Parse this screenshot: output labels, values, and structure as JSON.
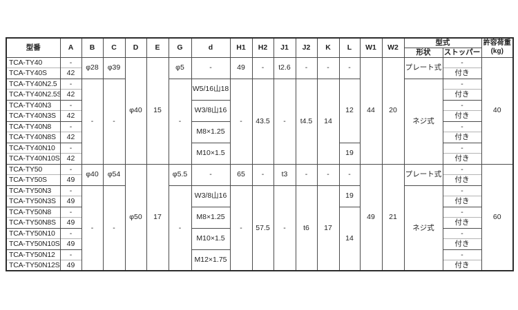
{
  "page": {
    "background": "#ffffff"
  },
  "colors": {
    "text": "#1f1f1f",
    "grid": "#4a4a4a",
    "grid_light": "#b3b3b3",
    "outer_border": "#2b2b2b",
    "background": "#ffffff"
  },
  "table": {
    "column_keys": [
      "model",
      "A",
      "B",
      "C",
      "D",
      "E",
      "G",
      "d",
      "H1",
      "H2",
      "J1",
      "J2",
      "K",
      "L",
      "W1",
      "W2",
      "shape",
      "stopper",
      "load"
    ],
    "header": {
      "cols": [
        "型番",
        "A",
        "B",
        "C",
        "D",
        "E",
        "G",
        "d",
        "H1",
        "H2",
        "J1",
        "J2",
        "K",
        "L",
        "W1",
        "W2"
      ],
      "type_group": "型式",
      "shape": "形状",
      "stopper": "ストッパー",
      "load_label": "許容荷重",
      "load_unit": "(kg)"
    },
    "rows": [
      [
        {
          "c": 0,
          "t": "TCA-TY40"
        },
        {
          "c": 1,
          "t": "-"
        },
        {
          "c": 2,
          "t": "φ28",
          "rs": 2
        },
        {
          "c": 3,
          "t": "φ39",
          "rs": 2
        },
        {
          "c": 4,
          "t": "φ40",
          "rs": 10
        },
        {
          "c": 5,
          "t": "15",
          "rs": 10
        },
        {
          "c": 6,
          "t": "φ5",
          "rs": 2
        },
        {
          "c": 7,
          "t": "-",
          "rs": 2
        },
        {
          "c": 8,
          "t": "49",
          "rs": 2
        },
        {
          "c": 9,
          "t": "-",
          "rs": 2
        },
        {
          "c": 10,
          "t": "t2.6",
          "rs": 2
        },
        {
          "c": 11,
          "t": "-",
          "rs": 2
        },
        {
          "c": 12,
          "t": "-",
          "rs": 2
        },
        {
          "c": 13,
          "t": "-",
          "rs": 2
        },
        {
          "c": 14,
          "t": "44",
          "rs": 10
        },
        {
          "c": 15,
          "t": "20",
          "rs": 10
        },
        {
          "c": 16,
          "t": "プレート式",
          "rs": 2
        },
        {
          "c": 17,
          "t": "-"
        },
        {
          "c": 18,
          "t": "40",
          "rs": 10
        }
      ],
      [
        {
          "c": 0,
          "t": "TCA-TY40S"
        },
        {
          "c": 1,
          "t": "42"
        },
        {
          "c": 17,
          "t": "付き"
        }
      ],
      [
        {
          "c": 0,
          "t": "TCA-TY40N2.5"
        },
        {
          "c": 1,
          "t": "-"
        },
        {
          "c": 2,
          "t": "-",
          "rs": 8
        },
        {
          "c": 3,
          "t": "-",
          "rs": 8
        },
        {
          "c": 6,
          "t": "-",
          "rs": 8
        },
        {
          "c": 7,
          "t": "W5/16山18",
          "rs": 2
        },
        {
          "c": 8,
          "t": "-",
          "rs": 8
        },
        {
          "c": 9,
          "t": "43.5",
          "rs": 8
        },
        {
          "c": 10,
          "t": "-",
          "rs": 8
        },
        {
          "c": 11,
          "t": "t4.5",
          "rs": 8
        },
        {
          "c": 12,
          "t": "14",
          "rs": 8
        },
        {
          "c": 13,
          "t": "12",
          "rs": 6
        },
        {
          "c": 16,
          "t": "ネジ式",
          "rs": 8
        },
        {
          "c": 17,
          "t": "-"
        }
      ],
      [
        {
          "c": 0,
          "t": "TCA-TY40N2.5S"
        },
        {
          "c": 1,
          "t": "42"
        },
        {
          "c": 17,
          "t": "付き"
        }
      ],
      [
        {
          "c": 0,
          "t": "TCA-TY40N3"
        },
        {
          "c": 1,
          "t": "-"
        },
        {
          "c": 7,
          "t": "W3/8山16",
          "rs": 2
        },
        {
          "c": 17,
          "t": "-"
        }
      ],
      [
        {
          "c": 0,
          "t": "TCA-TY40N3S"
        },
        {
          "c": 1,
          "t": "42"
        },
        {
          "c": 17,
          "t": "付き"
        }
      ],
      [
        {
          "c": 0,
          "t": "TCA-TY40N8"
        },
        {
          "c": 1,
          "t": "-"
        },
        {
          "c": 7,
          "t": "M8×1.25",
          "rs": 2
        },
        {
          "c": 17,
          "t": "-"
        }
      ],
      [
        {
          "c": 0,
          "t": "TCA-TY40N8S"
        },
        {
          "c": 1,
          "t": "42"
        },
        {
          "c": 17,
          "t": "付き"
        }
      ],
      [
        {
          "c": 0,
          "t": "TCA-TY40N10"
        },
        {
          "c": 1,
          "t": "-"
        },
        {
          "c": 7,
          "t": "M10×1.5",
          "rs": 2
        },
        {
          "c": 13,
          "t": "19",
          "rs": 2
        },
        {
          "c": 17,
          "t": "-"
        }
      ],
      [
        {
          "c": 0,
          "t": "TCA-TY40N10S"
        },
        {
          "c": 1,
          "t": "42"
        },
        {
          "c": 17,
          "t": "付き"
        }
      ],
      [
        {
          "c": 0,
          "t": "TCA-TY50"
        },
        {
          "c": 1,
          "t": "-"
        },
        {
          "c": 2,
          "t": "φ40",
          "rs": 2
        },
        {
          "c": 3,
          "t": "φ54",
          "rs": 2
        },
        {
          "c": 4,
          "t": "φ50",
          "rs": 10
        },
        {
          "c": 5,
          "t": "17",
          "rs": 10
        },
        {
          "c": 6,
          "t": "φ5.5",
          "rs": 2
        },
        {
          "c": 7,
          "t": "-",
          "rs": 2
        },
        {
          "c": 8,
          "t": "65",
          "rs": 2
        },
        {
          "c": 9,
          "t": "-",
          "rs": 2
        },
        {
          "c": 10,
          "t": "t3",
          "rs": 2
        },
        {
          "c": 11,
          "t": "-",
          "rs": 2
        },
        {
          "c": 12,
          "t": "-",
          "rs": 2
        },
        {
          "c": 13,
          "t": "-",
          "rs": 2
        },
        {
          "c": 14,
          "t": "49",
          "rs": 10
        },
        {
          "c": 15,
          "t": "21",
          "rs": 10
        },
        {
          "c": 16,
          "t": "プレート式",
          "rs": 2
        },
        {
          "c": 17,
          "t": "-"
        },
        {
          "c": 18,
          "t": "60",
          "rs": 10
        }
      ],
      [
        {
          "c": 0,
          "t": "TCA-TY50S"
        },
        {
          "c": 1,
          "t": "49"
        },
        {
          "c": 17,
          "t": "付き"
        }
      ],
      [
        {
          "c": 0,
          "t": "TCA-TY50N3"
        },
        {
          "c": 1,
          "t": "-"
        },
        {
          "c": 2,
          "t": "-",
          "rs": 8
        },
        {
          "c": 3,
          "t": "-",
          "rs": 8
        },
        {
          "c": 6,
          "t": "-",
          "rs": 8
        },
        {
          "c": 7,
          "t": "W3/8山16",
          "rs": 2
        },
        {
          "c": 8,
          "t": "-",
          "rs": 8
        },
        {
          "c": 9,
          "t": "57.5",
          "rs": 8
        },
        {
          "c": 10,
          "t": "-",
          "rs": 8
        },
        {
          "c": 11,
          "t": "t6",
          "rs": 8
        },
        {
          "c": 12,
          "t": "17",
          "rs": 8
        },
        {
          "c": 13,
          "t": "19",
          "rs": 2
        },
        {
          "c": 16,
          "t": "ネジ式",
          "rs": 8
        },
        {
          "c": 17,
          "t": "-"
        }
      ],
      [
        {
          "c": 0,
          "t": "TCA-TY50N3S"
        },
        {
          "c": 1,
          "t": "49"
        },
        {
          "c": 17,
          "t": "付き"
        }
      ],
      [
        {
          "c": 0,
          "t": "TCA-TY50N8"
        },
        {
          "c": 1,
          "t": "-"
        },
        {
          "c": 7,
          "t": "M8×1.25",
          "rs": 2
        },
        {
          "c": 13,
          "t": "14",
          "rs": 6
        },
        {
          "c": 17,
          "t": "-"
        }
      ],
      [
        {
          "c": 0,
          "t": "TCA-TY50N8S"
        },
        {
          "c": 1,
          "t": "49"
        },
        {
          "c": 17,
          "t": "付き"
        }
      ],
      [
        {
          "c": 0,
          "t": "TCA-TY50N10"
        },
        {
          "c": 1,
          "t": "-"
        },
        {
          "c": 7,
          "t": "M10×1.5",
          "rs": 2
        },
        {
          "c": 17,
          "t": "-"
        }
      ],
      [
        {
          "c": 0,
          "t": "TCA-TY50N10S"
        },
        {
          "c": 1,
          "t": "49"
        },
        {
          "c": 17,
          "t": "付き"
        }
      ],
      [
        {
          "c": 0,
          "t": "TCA-TY50N12"
        },
        {
          "c": 1,
          "t": "-"
        },
        {
          "c": 7,
          "t": "M12×1.75",
          "rs": 2
        },
        {
          "c": 17,
          "t": "-"
        }
      ],
      [
        {
          "c": 0,
          "t": "TCA-TY50N12S"
        },
        {
          "c": 1,
          "t": "49"
        },
        {
          "c": 17,
          "t": "付き"
        }
      ]
    ]
  }
}
